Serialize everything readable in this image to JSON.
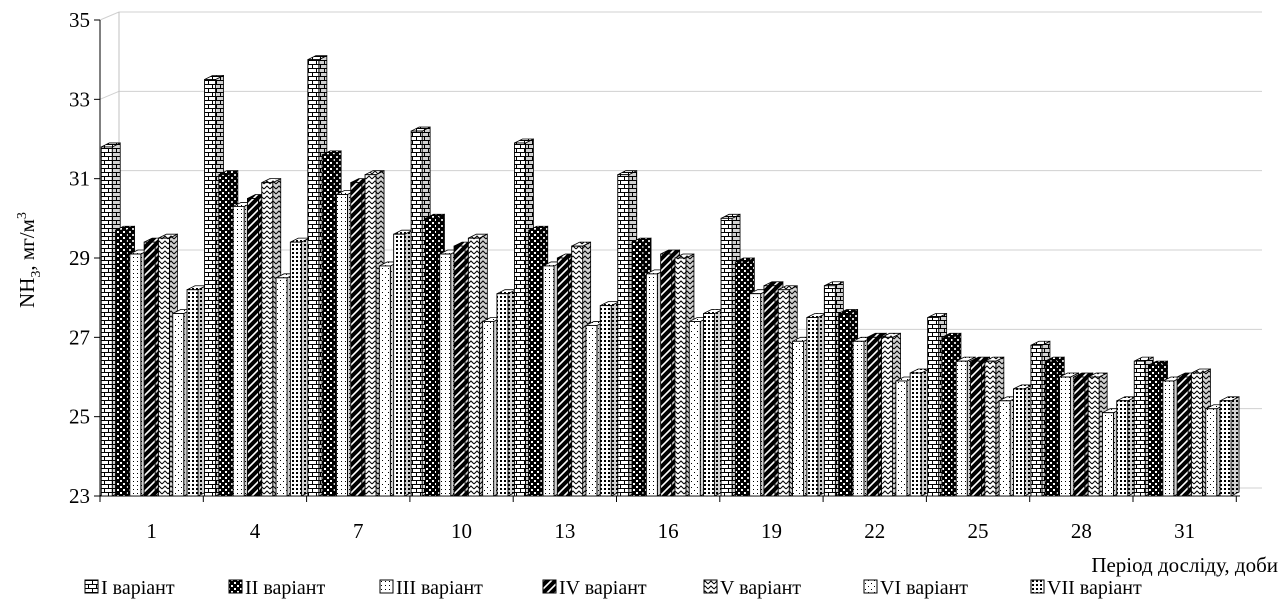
{
  "chart_data": {
    "type": "bar",
    "style": "3d-clustered",
    "title": "",
    "ylabel_parts": [
      "NH",
      "3",
      ", мг/м",
      "3"
    ],
    "xlabel": "Період досліду, доби",
    "ylim": [
      23,
      35
    ],
    "yticks": [
      23,
      25,
      27,
      29,
      31,
      33,
      35
    ],
    "grid": true,
    "legend_position": "bottom",
    "categories": [
      "1",
      "4",
      "7",
      "10",
      "13",
      "16",
      "19",
      "22",
      "25",
      "28",
      "31"
    ],
    "series": [
      {
        "name": "I варіант",
        "pattern": "bricks",
        "values": [
          31.8,
          33.5,
          34.0,
          32.2,
          31.9,
          31.1,
          30.0,
          28.3,
          27.5,
          26.8,
          26.4
        ]
      },
      {
        "name": "II варіант",
        "pattern": "checker",
        "values": [
          29.7,
          31.1,
          31.6,
          30.0,
          29.7,
          29.4,
          28.9,
          27.6,
          27.0,
          26.4,
          26.3
        ]
      },
      {
        "name": "III варіант",
        "pattern": "dots",
        "values": [
          29.1,
          30.3,
          30.6,
          29.1,
          28.8,
          28.6,
          28.1,
          26.9,
          26.4,
          26.0,
          25.9
        ]
      },
      {
        "name": "IV варіант",
        "pattern": "diagonal",
        "values": [
          29.4,
          30.5,
          30.9,
          29.3,
          29.0,
          29.1,
          28.3,
          27.0,
          26.4,
          26.0,
          26.0
        ]
      },
      {
        "name": "V варіант",
        "pattern": "zigzag",
        "values": [
          29.5,
          30.9,
          31.1,
          29.5,
          29.3,
          29.0,
          28.2,
          27.0,
          26.4,
          26.0,
          26.1
        ]
      },
      {
        "name": "VI варіант",
        "pattern": "sparse",
        "values": [
          27.6,
          28.5,
          28.8,
          27.4,
          27.3,
          27.4,
          26.9,
          25.9,
          25.4,
          25.1,
          25.2
        ]
      },
      {
        "name": "VII варіант",
        "pattern": "dense",
        "values": [
          28.2,
          29.4,
          29.6,
          28.1,
          27.8,
          27.6,
          27.5,
          26.1,
          25.7,
          25.4,
          25.4
        ]
      }
    ]
  }
}
